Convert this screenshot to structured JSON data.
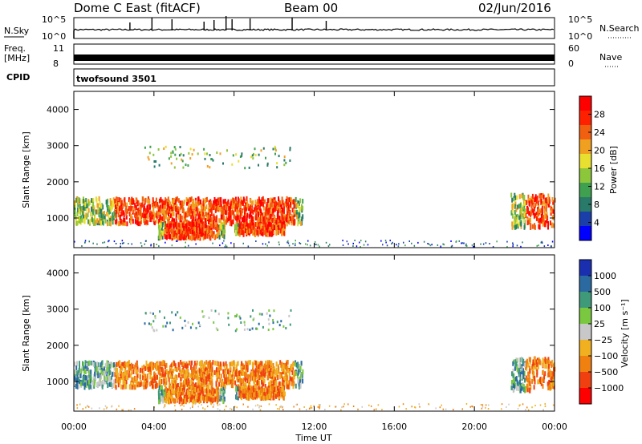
{
  "header": {
    "radar": "Dome C East (fitACF)",
    "beam": "Beam 00",
    "date": "02/Jun/2016"
  },
  "strips": {
    "nsky_label": "N.Sky",
    "nsky_ticks": [
      "10^5",
      "10^0"
    ],
    "nsearch_label": "N.Search",
    "nsearch_ticks": [
      "10^5",
      "10^0"
    ],
    "freq_label_top": "Freq.",
    "freq_label_unit": "[MHz]",
    "freq_ticks": [
      "11",
      "8"
    ],
    "nave_label": "Nave",
    "nave_ticks": [
      "60",
      "0"
    ],
    "cpid_label": "CPID",
    "cpid_value": "twofsound 3501"
  },
  "chart_data": [
    {
      "type": "heatmap",
      "name": "Power",
      "ylabel": "Slant Range [km]",
      "ylim": [
        180,
        4500
      ],
      "yticks": [
        "1000",
        "2000",
        "3000",
        "4000"
      ],
      "colorbar_label": "Power [dB]",
      "colorbar_ticks": [
        "4",
        "8",
        "12",
        "16",
        "20",
        "24",
        "28"
      ],
      "colorbar_range": [
        0,
        32
      ],
      "colors": [
        "#0000ff",
        "#1a3fa8",
        "#2a7a6a",
        "#3fa050",
        "#8cc63a",
        "#e8e030",
        "#f0a020",
        "#f06010",
        "#ff2000",
        "#ff0000"
      ]
    },
    {
      "type": "heatmap",
      "name": "Velocity",
      "ylabel": "Slant Range [km]",
      "ylim": [
        180,
        4500
      ],
      "yticks": [
        "1000",
        "2000",
        "3000",
        "4000"
      ],
      "colorbar_label": "Velocity [m s⁻¹]",
      "colorbar_ticks": [
        "1000",
        "500",
        "100",
        "25",
        "−25",
        "−100",
        "−500",
        "−1000"
      ],
      "colors": [
        "#1a2fb0",
        "#2a6aa0",
        "#3f9a7a",
        "#7ac840",
        "#c8c8c8",
        "#f0b020",
        "#f08010",
        "#f04010",
        "#ff0000"
      ]
    }
  ],
  "xaxis": {
    "label": "Time UT",
    "ticks": [
      "00:00",
      "04:00",
      "08:00",
      "12:00",
      "16:00",
      "20:00",
      "00:00"
    ]
  }
}
